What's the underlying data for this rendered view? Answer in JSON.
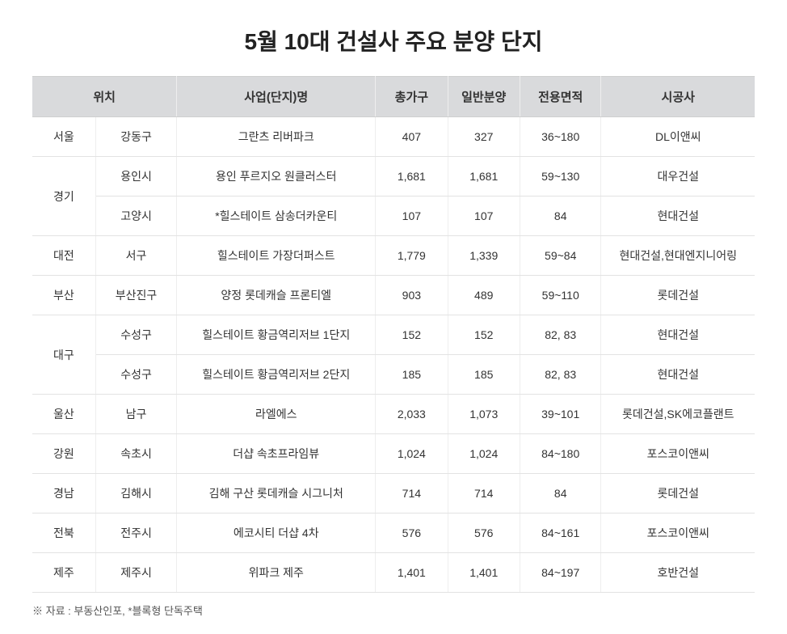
{
  "title": "5월 10대 건설사 주요 분양 단지",
  "columns": [
    "위치",
    "사업(단지)명",
    "총가구",
    "일반분양",
    "전용면적",
    "시공사"
  ],
  "rows": [
    {
      "region": "서울",
      "district": "강동구",
      "project": "그란츠 리버파크",
      "total": "407",
      "general": "327",
      "area": "36~180",
      "builder": "DL이앤씨",
      "rowspan": 1
    },
    {
      "region": "경기",
      "district": "용인시",
      "project": "용인 푸르지오 원클러스터",
      "total": "1,681",
      "general": "1,681",
      "area": "59~130",
      "builder": "대우건설",
      "rowspan": 2
    },
    {
      "region": "",
      "district": "고양시",
      "project": "*힐스테이트 삼송더카운티",
      "total": "107",
      "general": "107",
      "area": "84",
      "builder": "현대건설",
      "rowspan": 0
    },
    {
      "region": "대전",
      "district": "서구",
      "project": "힐스테이트 가장더퍼스트",
      "total": "1,779",
      "general": "1,339",
      "area": "59~84",
      "builder": "현대건설,현대엔지니어링",
      "rowspan": 1
    },
    {
      "region": "부산",
      "district": "부산진구",
      "project": "양정 롯데캐슬 프론티엘",
      "total": "903",
      "general": "489",
      "area": "59~110",
      "builder": "롯데건설",
      "rowspan": 1
    },
    {
      "region": "대구",
      "district": "수성구",
      "project": "힐스테이트 황금역리저브 1단지",
      "total": "152",
      "general": "152",
      "area": "82, 83",
      "builder": "현대건설",
      "rowspan": 2
    },
    {
      "region": "",
      "district": "수성구",
      "project": "힐스테이트 황금역리저브 2단지",
      "total": "185",
      "general": "185",
      "area": "82, 83",
      "builder": "현대건설",
      "rowspan": 0
    },
    {
      "region": "울산",
      "district": "남구",
      "project": "라엘에스",
      "total": "2,033",
      "general": "1,073",
      "area": "39~101",
      "builder": "롯데건설,SK에코플랜트",
      "rowspan": 1
    },
    {
      "region": "강원",
      "district": "속초시",
      "project": "더샵 속초프라임뷰",
      "total": "1,024",
      "general": "1,024",
      "area": "84~180",
      "builder": "포스코이앤씨",
      "rowspan": 1
    },
    {
      "region": "경남",
      "district": "김해시",
      "project": "김해 구산 롯데캐슬 시그니처",
      "total": "714",
      "general": "714",
      "area": "84",
      "builder": "롯데건설",
      "rowspan": 1
    },
    {
      "region": "전북",
      "district": "전주시",
      "project": "에코시티 더샵 4차",
      "total": "576",
      "general": "576",
      "area": "84~161",
      "builder": "포스코이앤씨",
      "rowspan": 1
    },
    {
      "region": "제주",
      "district": "제주시",
      "project": "위파크 제주",
      "total": "1,401",
      "general": "1,401",
      "area": "84~197",
      "builder": "호반건설",
      "rowspan": 1
    }
  ],
  "footnote": "※ 자료 : 부동산인포,  *블록형 단독주택"
}
